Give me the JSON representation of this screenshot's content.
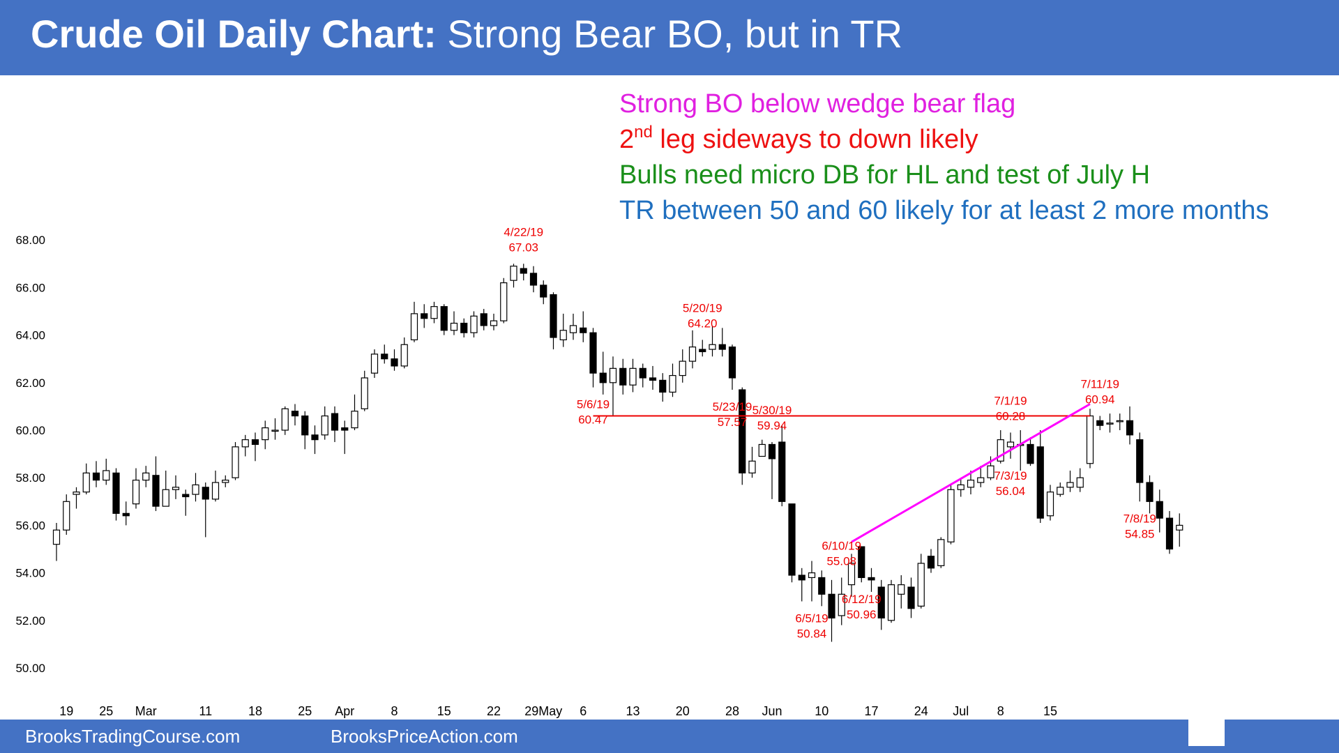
{
  "header": {
    "title_bold": "Crude Oil Daily Chart:",
    "title_rest": " Strong Bear BO, but in TR"
  },
  "annotations": [
    {
      "text": "Strong BO below wedge bear flag",
      "color": "#e020e0"
    },
    {
      "text_before": "2",
      "superscript": "nd",
      "text_after": " leg sideways to down likely",
      "color": "#ee1111"
    },
    {
      "text": "Bulls need micro DB for HL and test of July H",
      "color": "#1a8f1a"
    },
    {
      "text": "TR between 50 and 60 likely for at least 2 more months",
      "color": "#1f6fbf"
    }
  ],
  "footer": {
    "left": "BrooksTradingCourse.com",
    "right": "BrooksPriceAction.com"
  },
  "colors": {
    "header_bg": "#4472c4",
    "bull_candle": "#ffffff",
    "bear_candle": "#000000",
    "callout_red": "#ee0000",
    "wedge_line": "#ff00ff"
  },
  "chart_data": {
    "type": "candlestick",
    "title": "Crude Oil Daily Chart",
    "ylim": [
      48.5,
      69
    ],
    "y_ticks": [
      "50.00",
      "52.00",
      "54.00",
      "56.00",
      "58.00",
      "60.00",
      "62.00",
      "64.00",
      "66.00",
      "68.00"
    ],
    "x_ticks": [
      {
        "label": "19",
        "index": 1
      },
      {
        "label": "25",
        "index": 5
      },
      {
        "label": "Mar",
        "index": 9
      },
      {
        "label": "11",
        "index": 15
      },
      {
        "label": "18",
        "index": 20
      },
      {
        "label": "25",
        "index": 25
      },
      {
        "label": "Apr",
        "index": 29
      },
      {
        "label": "8",
        "index": 34
      },
      {
        "label": "15",
        "index": 39
      },
      {
        "label": "22",
        "index": 44
      },
      {
        "label": "29May",
        "index": 49
      },
      {
        "label": "6",
        "index": 53
      },
      {
        "label": "13",
        "index": 58
      },
      {
        "label": "20",
        "index": 63
      },
      {
        "label": "28",
        "index": 68
      },
      {
        "label": "Jun",
        "index": 72
      },
      {
        "label": "10",
        "index": 77
      },
      {
        "label": "17",
        "index": 82
      },
      {
        "label": "24",
        "index": 87
      },
      {
        "label": "Jul",
        "index": 91
      },
      {
        "label": "8",
        "index": 95
      },
      {
        "label": "15",
        "index": 100
      }
    ],
    "candles": [
      [
        55.2,
        55.8,
        54.5,
        56.1
      ],
      [
        55.8,
        57.0,
        55.6,
        57.3
      ],
      [
        57.3,
        57.4,
        56.7,
        57.6
      ],
      [
        57.4,
        58.2,
        57.3,
        58.6
      ],
      [
        58.2,
        57.9,
        57.6,
        58.7
      ],
      [
        57.9,
        58.3,
        57.7,
        58.8
      ],
      [
        58.2,
        56.5,
        56.2,
        58.4
      ],
      [
        56.5,
        56.4,
        56.0,
        57.0
      ],
      [
        56.9,
        57.9,
        56.7,
        58.4
      ],
      [
        57.9,
        58.2,
        57.6,
        58.5
      ],
      [
        58.1,
        56.8,
        56.6,
        58.9
      ],
      [
        56.8,
        57.5,
        56.8,
        58.3
      ],
      [
        57.5,
        57.6,
        57.1,
        58.1
      ],
      [
        57.3,
        57.2,
        56.4,
        57.5
      ],
      [
        57.3,
        57.7,
        57.0,
        58.2
      ],
      [
        57.6,
        57.1,
        55.5,
        57.8
      ],
      [
        57.1,
        57.8,
        57.0,
        58.3
      ],
      [
        57.8,
        57.9,
        57.6,
        58.1
      ],
      [
        58.0,
        59.3,
        57.9,
        59.5
      ],
      [
        59.3,
        59.6,
        58.9,
        59.8
      ],
      [
        59.6,
        59.4,
        58.7,
        59.9
      ],
      [
        59.6,
        60.1,
        59.2,
        60.4
      ],
      [
        60.0,
        60.0,
        59.6,
        60.5
      ],
      [
        60.0,
        60.9,
        59.8,
        61.0
      ],
      [
        60.8,
        60.6,
        60.2,
        61.1
      ],
      [
        60.6,
        59.8,
        59.2,
        60.8
      ],
      [
        59.8,
        59.6,
        59.0,
        60.2
      ],
      [
        59.8,
        60.6,
        59.6,
        61.0
      ],
      [
        60.7,
        60.0,
        59.5,
        61.0
      ],
      [
        60.1,
        60.0,
        59.0,
        60.4
      ],
      [
        60.1,
        60.8,
        60.0,
        61.5
      ],
      [
        60.9,
        62.2,
        60.8,
        62.5
      ],
      [
        62.4,
        63.2,
        62.2,
        63.4
      ],
      [
        63.2,
        63.0,
        62.8,
        63.6
      ],
      [
        63.0,
        62.7,
        62.5,
        63.4
      ],
      [
        62.7,
        63.6,
        62.6,
        63.9
      ],
      [
        63.8,
        64.9,
        63.7,
        65.4
      ],
      [
        64.9,
        64.7,
        64.3,
        65.3
      ],
      [
        64.7,
        65.2,
        64.5,
        65.4
      ],
      [
        65.2,
        64.2,
        64.0,
        65.3
      ],
      [
        64.2,
        64.5,
        64.0,
        65.0
      ],
      [
        64.5,
        64.1,
        63.9,
        64.7
      ],
      [
        64.1,
        64.8,
        63.9,
        65.0
      ],
      [
        64.9,
        64.4,
        64.2,
        65.1
      ],
      [
        64.4,
        64.6,
        64.2,
        64.9
      ],
      [
        64.6,
        66.2,
        64.5,
        66.4
      ],
      [
        66.3,
        66.9,
        66.0,
        67.0
      ],
      [
        66.8,
        66.6,
        66.3,
        67.0
      ],
      [
        66.6,
        66.1,
        65.8,
        66.9
      ],
      [
        66.1,
        65.6,
        65.3,
        66.3
      ],
      [
        65.7,
        63.9,
        63.4,
        65.8
      ],
      [
        63.8,
        64.2,
        63.5,
        64.9
      ],
      [
        64.1,
        64.4,
        63.8,
        64.9
      ],
      [
        64.3,
        64.1,
        63.7,
        65.0
      ],
      [
        64.1,
        62.4,
        61.8,
        64.3
      ],
      [
        62.4,
        62.0,
        61.5,
        63.3
      ],
      [
        62.0,
        62.6,
        60.6,
        63.1
      ],
      [
        62.6,
        61.9,
        61.5,
        63.0
      ],
      [
        61.9,
        62.6,
        61.6,
        63.0
      ],
      [
        62.6,
        62.2,
        61.8,
        62.8
      ],
      [
        62.2,
        62.1,
        61.7,
        62.7
      ],
      [
        62.1,
        61.6,
        61.2,
        62.4
      ],
      [
        61.6,
        62.3,
        61.4,
        62.8
      ],
      [
        62.3,
        62.9,
        62.0,
        63.4
      ],
      [
        62.9,
        63.5,
        62.6,
        64.2
      ],
      [
        63.4,
        63.3,
        63.1,
        63.8
      ],
      [
        63.4,
        63.6,
        63.1,
        64.4
      ],
      [
        63.6,
        63.4,
        63.1,
        64.3
      ],
      [
        63.5,
        62.2,
        61.7,
        63.6
      ],
      [
        61.7,
        58.2,
        57.7,
        61.8
      ],
      [
        58.2,
        58.7,
        58.0,
        59.3
      ],
      [
        58.9,
        59.4,
        59.0,
        59.6
      ],
      [
        59.4,
        58.8,
        57.1,
        59.5
      ],
      [
        59.5,
        57.0,
        56.8,
        60.2
      ],
      [
        56.9,
        53.9,
        53.6,
        56.8
      ],
      [
        53.9,
        53.7,
        52.8,
        54.2
      ],
      [
        53.8,
        54.0,
        52.8,
        54.5
      ],
      [
        53.8,
        53.1,
        52.6,
        54.1
      ],
      [
        53.1,
        52.1,
        51.1,
        53.7
      ],
      [
        52.2,
        53.1,
        51.8,
        53.8
      ],
      [
        53.5,
        54.4,
        53.0,
        54.8
      ],
      [
        55.1,
        53.8,
        53.6,
        55.1
      ],
      [
        53.8,
        53.7,
        53.2,
        54.2
      ],
      [
        53.4,
        52.1,
        51.6,
        53.7
      ],
      [
        52.0,
        53.5,
        51.9,
        53.7
      ],
      [
        53.1,
        53.5,
        52.5,
        53.9
      ],
      [
        53.4,
        52.5,
        52.1,
        53.8
      ],
      [
        52.6,
        54.4,
        52.5,
        54.8
      ],
      [
        54.7,
        54.2,
        54.0,
        55.0
      ],
      [
        54.3,
        55.4,
        54.2,
        55.5
      ],
      [
        55.3,
        57.5,
        55.2,
        57.7
      ],
      [
        57.5,
        57.7,
        57.2,
        58.0
      ],
      [
        57.6,
        57.9,
        57.3,
        58.3
      ],
      [
        57.8,
        58.0,
        57.6,
        58.5
      ],
      [
        58.0,
        58.5,
        57.9,
        58.9
      ],
      [
        58.7,
        59.6,
        58.6,
        60.0
      ],
      [
        59.3,
        59.5,
        58.8,
        59.9
      ],
      [
        59.4,
        59.4,
        58.3,
        60.0
      ],
      [
        59.4,
        58.6,
        58.5,
        59.7
      ],
      [
        59.3,
        56.3,
        56.1,
        60.0
      ],
      [
        56.4,
        57.4,
        56.2,
        57.7
      ],
      [
        57.3,
        57.6,
        57.2,
        57.8
      ],
      [
        57.6,
        57.8,
        57.4,
        58.3
      ],
      [
        57.6,
        58.0,
        57.4,
        58.4
      ],
      [
        58.6,
        60.6,
        58.4,
        60.9
      ],
      [
        60.4,
        60.2,
        60.0,
        60.6
      ],
      [
        60.3,
        60.3,
        59.9,
        60.7
      ],
      [
        60.4,
        60.4,
        60.0,
        60.7
      ],
      [
        60.4,
        59.8,
        59.4,
        61.0
      ],
      [
        59.6,
        57.8,
        57.0,
        59.9
      ],
      [
        57.8,
        57.0,
        56.5,
        58.1
      ],
      [
        57.0,
        56.3,
        55.7,
        57.5
      ],
      [
        56.3,
        55.0,
        54.8,
        56.6
      ],
      [
        55.8,
        56.0,
        55.1,
        56.5
      ]
    ],
    "callouts": [
      {
        "date": "4/22/19",
        "price": "67.03",
        "index": 47,
        "pos": "above"
      },
      {
        "date": "5/20/19",
        "price": "64.20",
        "index": 65,
        "pos": "above"
      },
      {
        "date": "5/6/19",
        "price": "60.47",
        "index": 54,
        "pos": "below"
      },
      {
        "date": "5/23/19",
        "price": "57.57",
        "index": 68,
        "pos": "below"
      },
      {
        "date": "5/30/19",
        "price": "59.94",
        "index": 72,
        "pos": "above"
      },
      {
        "date": "6/5/19",
        "price": "50.84",
        "index": 76,
        "pos": "below"
      },
      {
        "date": "6/10/19",
        "price": "55.08",
        "index": 79,
        "pos": "above"
      },
      {
        "date": "6/12/19",
        "price": "50.96",
        "index": 81,
        "pos": "below"
      },
      {
        "date": "7/1/19",
        "price": "60.28",
        "index": 96,
        "pos": "above"
      },
      {
        "date": "7/3/19",
        "price": "56.04",
        "index": 96,
        "pos": "below"
      },
      {
        "date": "7/11/19",
        "price": "60.94",
        "index": 105,
        "pos": "above"
      },
      {
        "date": "7/8/19",
        "price": "54.85",
        "index": 109,
        "pos": "below"
      }
    ],
    "lines": [
      {
        "name": "may6-support",
        "color": "#ee0000",
        "from": {
          "index": 54,
          "price": 60.6
        },
        "to": {
          "index": 104,
          "price": 60.6
        }
      },
      {
        "name": "wedge-trendline",
        "color": "#ff00ff",
        "from": {
          "index": 80,
          "price": 55.3
        },
        "to": {
          "index": 104,
          "price": 61.1
        }
      }
    ]
  }
}
